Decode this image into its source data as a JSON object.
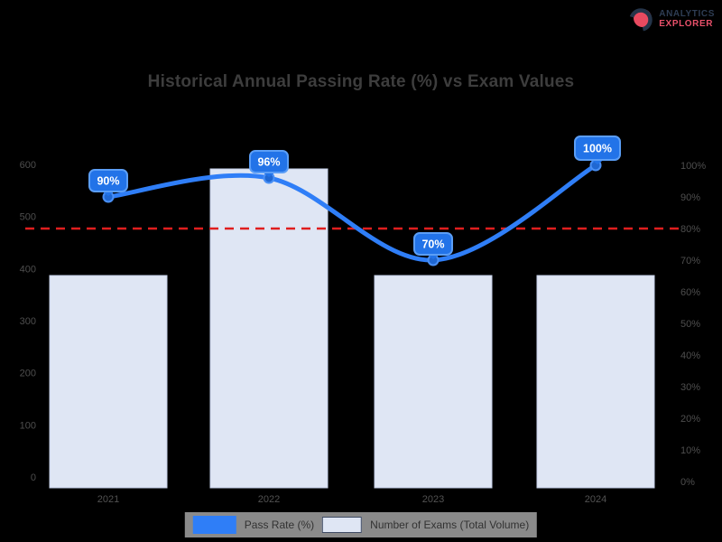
{
  "logo": {
    "line1": "ANALYTICS",
    "line2": "EXPLORER",
    "icon": "red-circle-logo"
  },
  "chart_data": {
    "type": "bar+line",
    "title": "Historical Annual Passing Rate (%) vs Exam Values",
    "categories": [
      "2021",
      "2022",
      "2023",
      "2024"
    ],
    "series": [
      {
        "name": "Pass Rate (%)",
        "type": "line",
        "axis": "right",
        "values": [
          90,
          96,
          70,
          100
        ],
        "labels": [
          "90%",
          "96%",
          "70%",
          "100%"
        ],
        "color": "#2f7ef7"
      },
      {
        "name": "Number of Exams (Total Volume)",
        "type": "bar",
        "axis": "left",
        "values": [
          400,
          600,
          400,
          400
        ],
        "color": "#dfe6f4"
      }
    ],
    "left_axis": {
      "min": 0,
      "max": 600,
      "ticks": [
        600,
        500,
        400,
        300,
        200,
        100,
        0
      ]
    },
    "right_axis": {
      "min": 0,
      "max": 100,
      "suffix": "%",
      "ticks": [
        100,
        90,
        80,
        70,
        60,
        50,
        40,
        30,
        20,
        10,
        0
      ]
    },
    "target_line": {
      "value": 80,
      "color": "#e01e1e",
      "style": "dashed"
    },
    "legend_position": "bottom",
    "grid": false,
    "background": "#000000",
    "colors": {
      "line": "#2f7ef7",
      "marker_fill": "#1f67d2",
      "marker_ring": "#4a90f5",
      "bar_fill": "#dfe6f4",
      "bar_border": "#c5cfe8",
      "badge_fill": "#2273e8",
      "badge_border": "#5b9ef6",
      "badge_text": "#ffffff",
      "target": "#e01e1e",
      "tick_text": "#4e4e4e",
      "category_text": "#525252"
    }
  }
}
